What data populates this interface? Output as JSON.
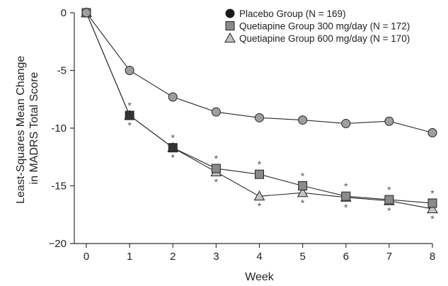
{
  "chart_data": {
    "type": "line",
    "xlabel": "Week",
    "ylabel": [
      "Least-Squares Mean Change",
      "in MADRS Total Score"
    ],
    "xlim": [
      0,
      8
    ],
    "ylim": [
      -20,
      0
    ],
    "x_ticks": [
      0,
      1,
      2,
      3,
      4,
      5,
      6,
      7,
      8
    ],
    "y_ticks": [
      0,
      -5,
      -10,
      -15,
      -20
    ],
    "y_tick_labels": [
      "0",
      "-5",
      "-10",
      "-15",
      "−20"
    ],
    "grid": false,
    "legend_position": "top-right",
    "x": [
      0,
      1,
      2,
      3,
      4,
      5,
      6,
      7,
      8
    ],
    "series": [
      {
        "name": "Placebo Group (N = 169)",
        "marker": "circle",
        "color": "#9e9e9e",
        "values": [
          0,
          -5.0,
          -7.3,
          -8.6,
          -9.1,
          -9.3,
          -9.6,
          -9.4,
          -10.4
        ]
      },
      {
        "name": "Quetiapine Group 300 mg/day (N = 172)",
        "marker": "square",
        "color": "#8a8a8a",
        "values": [
          0,
          -8.9,
          -11.7,
          -13.5,
          -14.0,
          -15.0,
          -15.9,
          -16.2,
          -16.5
        ]
      },
      {
        "name": "Quetiapine Group 600 mg/day (N = 170)",
        "marker": "triangle",
        "color": "#c4c4c4",
        "values": [
          0,
          -8.9,
          -11.7,
          -13.8,
          -15.9,
          -15.6,
          -16.0,
          -16.3,
          -17.0
        ]
      }
    ],
    "significance_marker": "*",
    "significance_weeks": [
      1,
      2,
      3,
      4,
      5,
      6,
      7,
      8
    ]
  }
}
